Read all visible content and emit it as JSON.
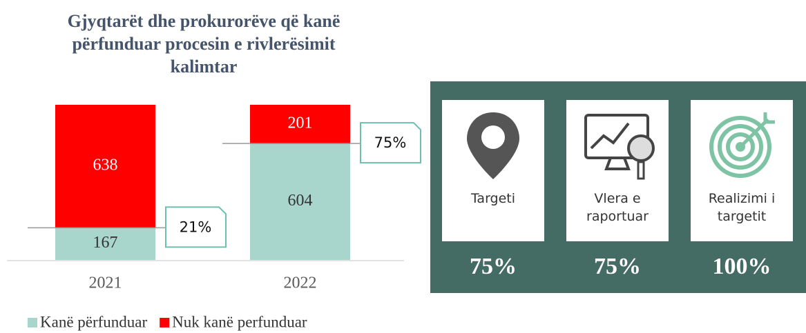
{
  "chart_data": {
    "type": "bar",
    "stacked": true,
    "title": "Gjyqtarët dhe prokurorëve që kanë përfunduar procesin e rivlerësimit kalimtar",
    "categories": [
      "2021",
      "2022"
    ],
    "series": [
      {
        "name": "Kanë përfunduar",
        "color": "#a8d5cc",
        "values": [
          167,
          604
        ]
      },
      {
        "name": "Nuk kanë perfunduar",
        "color": "#ff0000",
        "values": [
          638,
          201
        ]
      }
    ],
    "annotations": [
      "21%",
      "75%"
    ]
  },
  "panel": {
    "cards": [
      {
        "label": "Targeti",
        "value": "75%"
      },
      {
        "label": "Vlera e raportuar",
        "value": "75%"
      },
      {
        "label": "Realizimi i targetit",
        "value": "100%"
      }
    ]
  }
}
